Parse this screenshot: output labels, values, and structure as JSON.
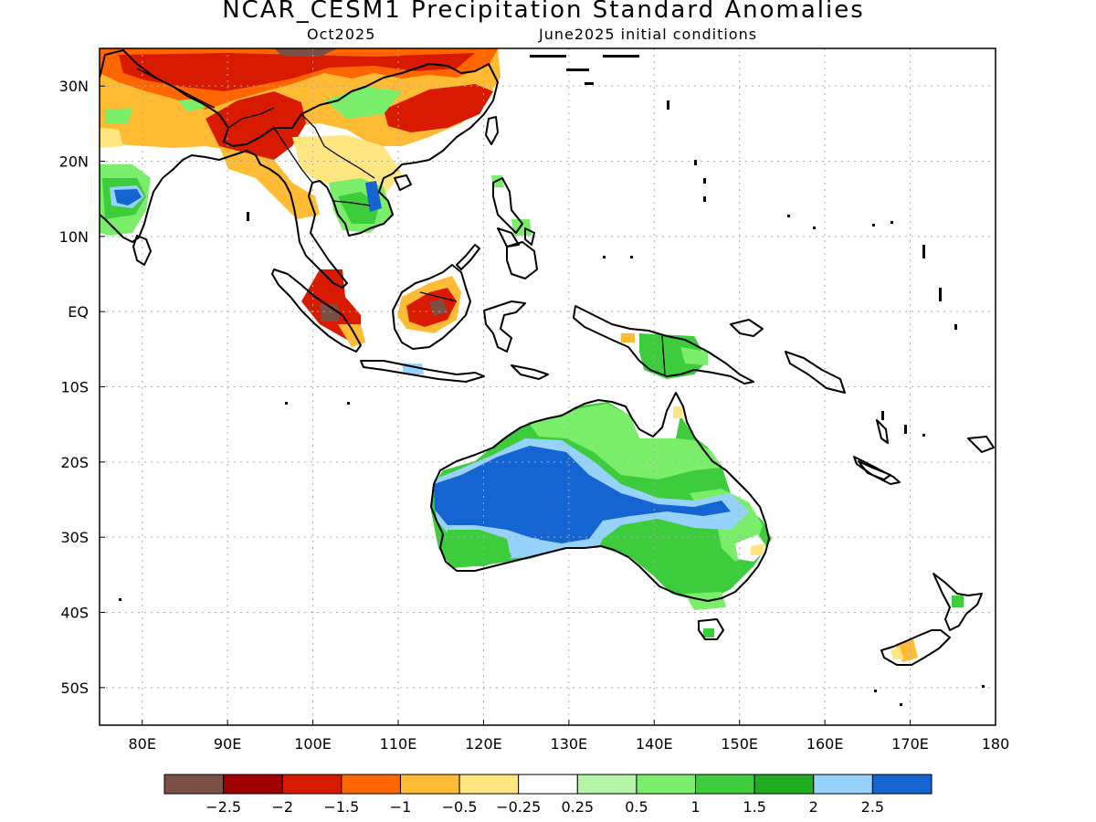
{
  "title": "NCAR_CESM1 Precipitation Standard Anomalies",
  "subtitle_left": "Oct2025",
  "subtitle_right": "June2025 initial conditions",
  "map": {
    "lon_range": [
      75,
      180
    ],
    "lat_range": [
      -55,
      35
    ],
    "lon_ticks": [
      {
        "lon": 80,
        "label": "80E"
      },
      {
        "lon": 90,
        "label": "90E"
      },
      {
        "lon": 100,
        "label": "100E"
      },
      {
        "lon": 110,
        "label": "110E"
      },
      {
        "lon": 120,
        "label": "120E"
      },
      {
        "lon": 130,
        "label": "130E"
      },
      {
        "lon": 140,
        "label": "140E"
      },
      {
        "lon": 150,
        "label": "150E"
      },
      {
        "lon": 160,
        "label": "160E"
      },
      {
        "lon": 170,
        "label": "170E"
      },
      {
        "lon": 180,
        "label": "180"
      }
    ],
    "lat_ticks": [
      {
        "lat": 30,
        "label": "30N"
      },
      {
        "lat": 20,
        "label": "20N"
      },
      {
        "lat": 10,
        "label": "10N"
      },
      {
        "lat": 0,
        "label": "EQ"
      },
      {
        "lat": -10,
        "label": "10S"
      },
      {
        "lat": -20,
        "label": "20S"
      },
      {
        "lat": -30,
        "label": "30S"
      },
      {
        "lat": -40,
        "label": "40S"
      },
      {
        "lat": -50,
        "label": "50S"
      }
    ],
    "grid": true
  },
  "colorbar": {
    "colors": [
      "#7a5046",
      "#a00000",
      "#d81b00",
      "#ff6600",
      "#ffbb33",
      "#ffe680",
      "#ffffff",
      "#b3f5a6",
      "#7aed6b",
      "#3ccc3c",
      "#1fad1f",
      "#96d2fa",
      "#1464d2"
    ],
    "labels": [
      "−2.5",
      "−2",
      "−1.5",
      "−1",
      "−0.5",
      "−0.25",
      "0.25",
      "0.5",
      "1",
      "1.5",
      "2",
      "2.5"
    ]
  }
}
